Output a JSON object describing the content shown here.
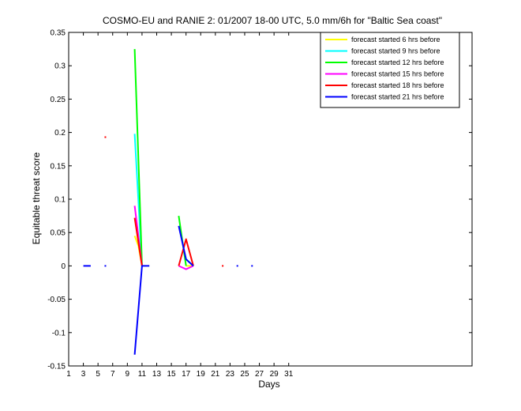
{
  "chart_data": {
    "type": "line",
    "title": "COSMO-EU and RANIE 2: 01/2007 18-00 UTC, 5.0 mm/6h for \"Baltic Sea coast\"",
    "xlabel": "Days",
    "ylabel": "Equitable threat score",
    "xlim": [
      1,
      56
    ],
    "ylim": [
      -0.15,
      0.35
    ],
    "xticks": [
      1,
      3,
      5,
      7,
      9,
      11,
      13,
      15,
      17,
      19,
      21,
      23,
      25,
      27,
      29,
      31
    ],
    "yticks": [
      -0.15,
      -0.1,
      -0.05,
      0,
      0.05,
      0.1,
      0.15,
      0.2,
      0.25,
      0.3,
      0.35
    ],
    "ytick_labels": [
      "-0.15",
      "-0.1",
      "-0.05",
      "0",
      "0.05",
      "0.1",
      "0.15",
      "0.2",
      "0.25",
      "0.3",
      "0.35"
    ],
    "grid": false,
    "legend_position": "top-right",
    "series": [
      {
        "name": "forecast started 6 hrs before",
        "color": "#ffff00",
        "segments": [
          [
            [
              10,
              0.045
            ],
            [
              10.5,
              0.03
            ],
            [
              11,
              0.0
            ]
          ],
          [
            [
              17,
              0.0
            ],
            [
              18,
              0.0
            ]
          ]
        ],
        "dots": []
      },
      {
        "name": "forecast started 9 hrs before",
        "color": "#00ffff",
        "segments": [
          [
            [
              10,
              0.198
            ],
            [
              11,
              0.0
            ]
          ],
          [
            [
              17,
              0.01
            ],
            [
              18,
              0.0
            ]
          ]
        ],
        "dots": []
      },
      {
        "name": "forecast started 12 hrs before",
        "color": "#00ff00",
        "segments": [
          [
            [
              10,
              0.325
            ],
            [
              11,
              0.0
            ]
          ],
          [
            [
              16,
              0.075
            ],
            [
              17,
              0.0
            ]
          ]
        ],
        "dots": []
      },
      {
        "name": "forecast started 15 hrs before",
        "color": "#ff00ff",
        "segments": [
          [
            [
              10,
              0.09
            ],
            [
              11,
              0.0
            ]
          ],
          [
            [
              16,
              0.0
            ],
            [
              17,
              -0.005
            ],
            [
              18,
              0.0
            ]
          ]
        ],
        "dots": []
      },
      {
        "name": "forecast started 18 hrs before",
        "color": "#ff0000",
        "segments": [
          [
            [
              10,
              0.072
            ],
            [
              11,
              0.0
            ]
          ],
          [
            [
              16,
              0.0
            ],
            [
              17,
              0.04
            ],
            [
              18,
              0.0
            ]
          ]
        ],
        "dots": [
          [
            6,
            0.193
          ],
          [
            22,
            0.0
          ]
        ]
      },
      {
        "name": "forecast started 21 hrs before",
        "color": "#0000ff",
        "segments": [
          [
            [
              3,
              0.0
            ],
            [
              4,
              0.0
            ]
          ],
          [
            [
              10,
              -0.133
            ],
            [
              11,
              0.0
            ],
            [
              12,
              0.0
            ]
          ],
          [
            [
              16,
              0.06
            ],
            [
              17,
              0.01
            ],
            [
              18,
              0.0
            ]
          ]
        ],
        "dots": [
          [
            6,
            0.0
          ],
          [
            24,
            0.0
          ],
          [
            26,
            0.0
          ]
        ]
      }
    ]
  }
}
